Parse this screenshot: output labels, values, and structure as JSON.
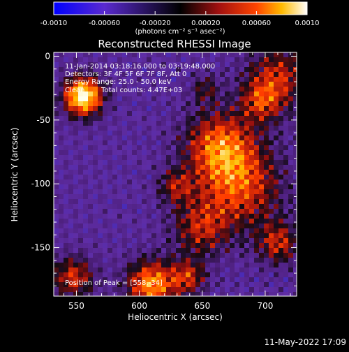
{
  "chart_data": {
    "type": "heatmap",
    "title": "Reconstructed RHESSI Image",
    "xlabel": "Heliocentric X (arcsec)",
    "ylabel": "Heliocentric Y (arcsec)",
    "xlim": [
      532,
      725
    ],
    "ylim": [
      -188,
      3
    ],
    "x_ticks": [
      550,
      600,
      650,
      700
    ],
    "y_ticks": [
      0,
      -50,
      -100,
      -150
    ],
    "colorbar": {
      "ticks": [
        "-0.0010",
        "-0.00060",
        "-0.00020",
        "0.00020",
        "0.00060",
        "0.0010"
      ],
      "range": [
        -0.001,
        0.001
      ],
      "unit_label": "(photons cm⁻² s⁻¹ asec⁻²)",
      "colors": [
        "#0000ff",
        "#7a3cb4",
        "#000000",
        "#a01010",
        "#ff4400",
        "#ffcc00",
        "#ffffff"
      ]
    },
    "annotations": {
      "time_range": "11-Jan-2014 03:18:16.000 to 03:19:48.000",
      "detectors": "Detectors: 3F 4F 5F 6F 7F 8F, Att 0",
      "energy": "Energy Range: 25.0 - 50.0 keV",
      "method": "Clean",
      "counts": "Total counts: 4.47E+03",
      "peak": "Position of Peak = [558,-34]"
    },
    "peak": {
      "x": 558,
      "y": -34
    }
  },
  "footer": {
    "date": "11-May-2022 17:09"
  }
}
